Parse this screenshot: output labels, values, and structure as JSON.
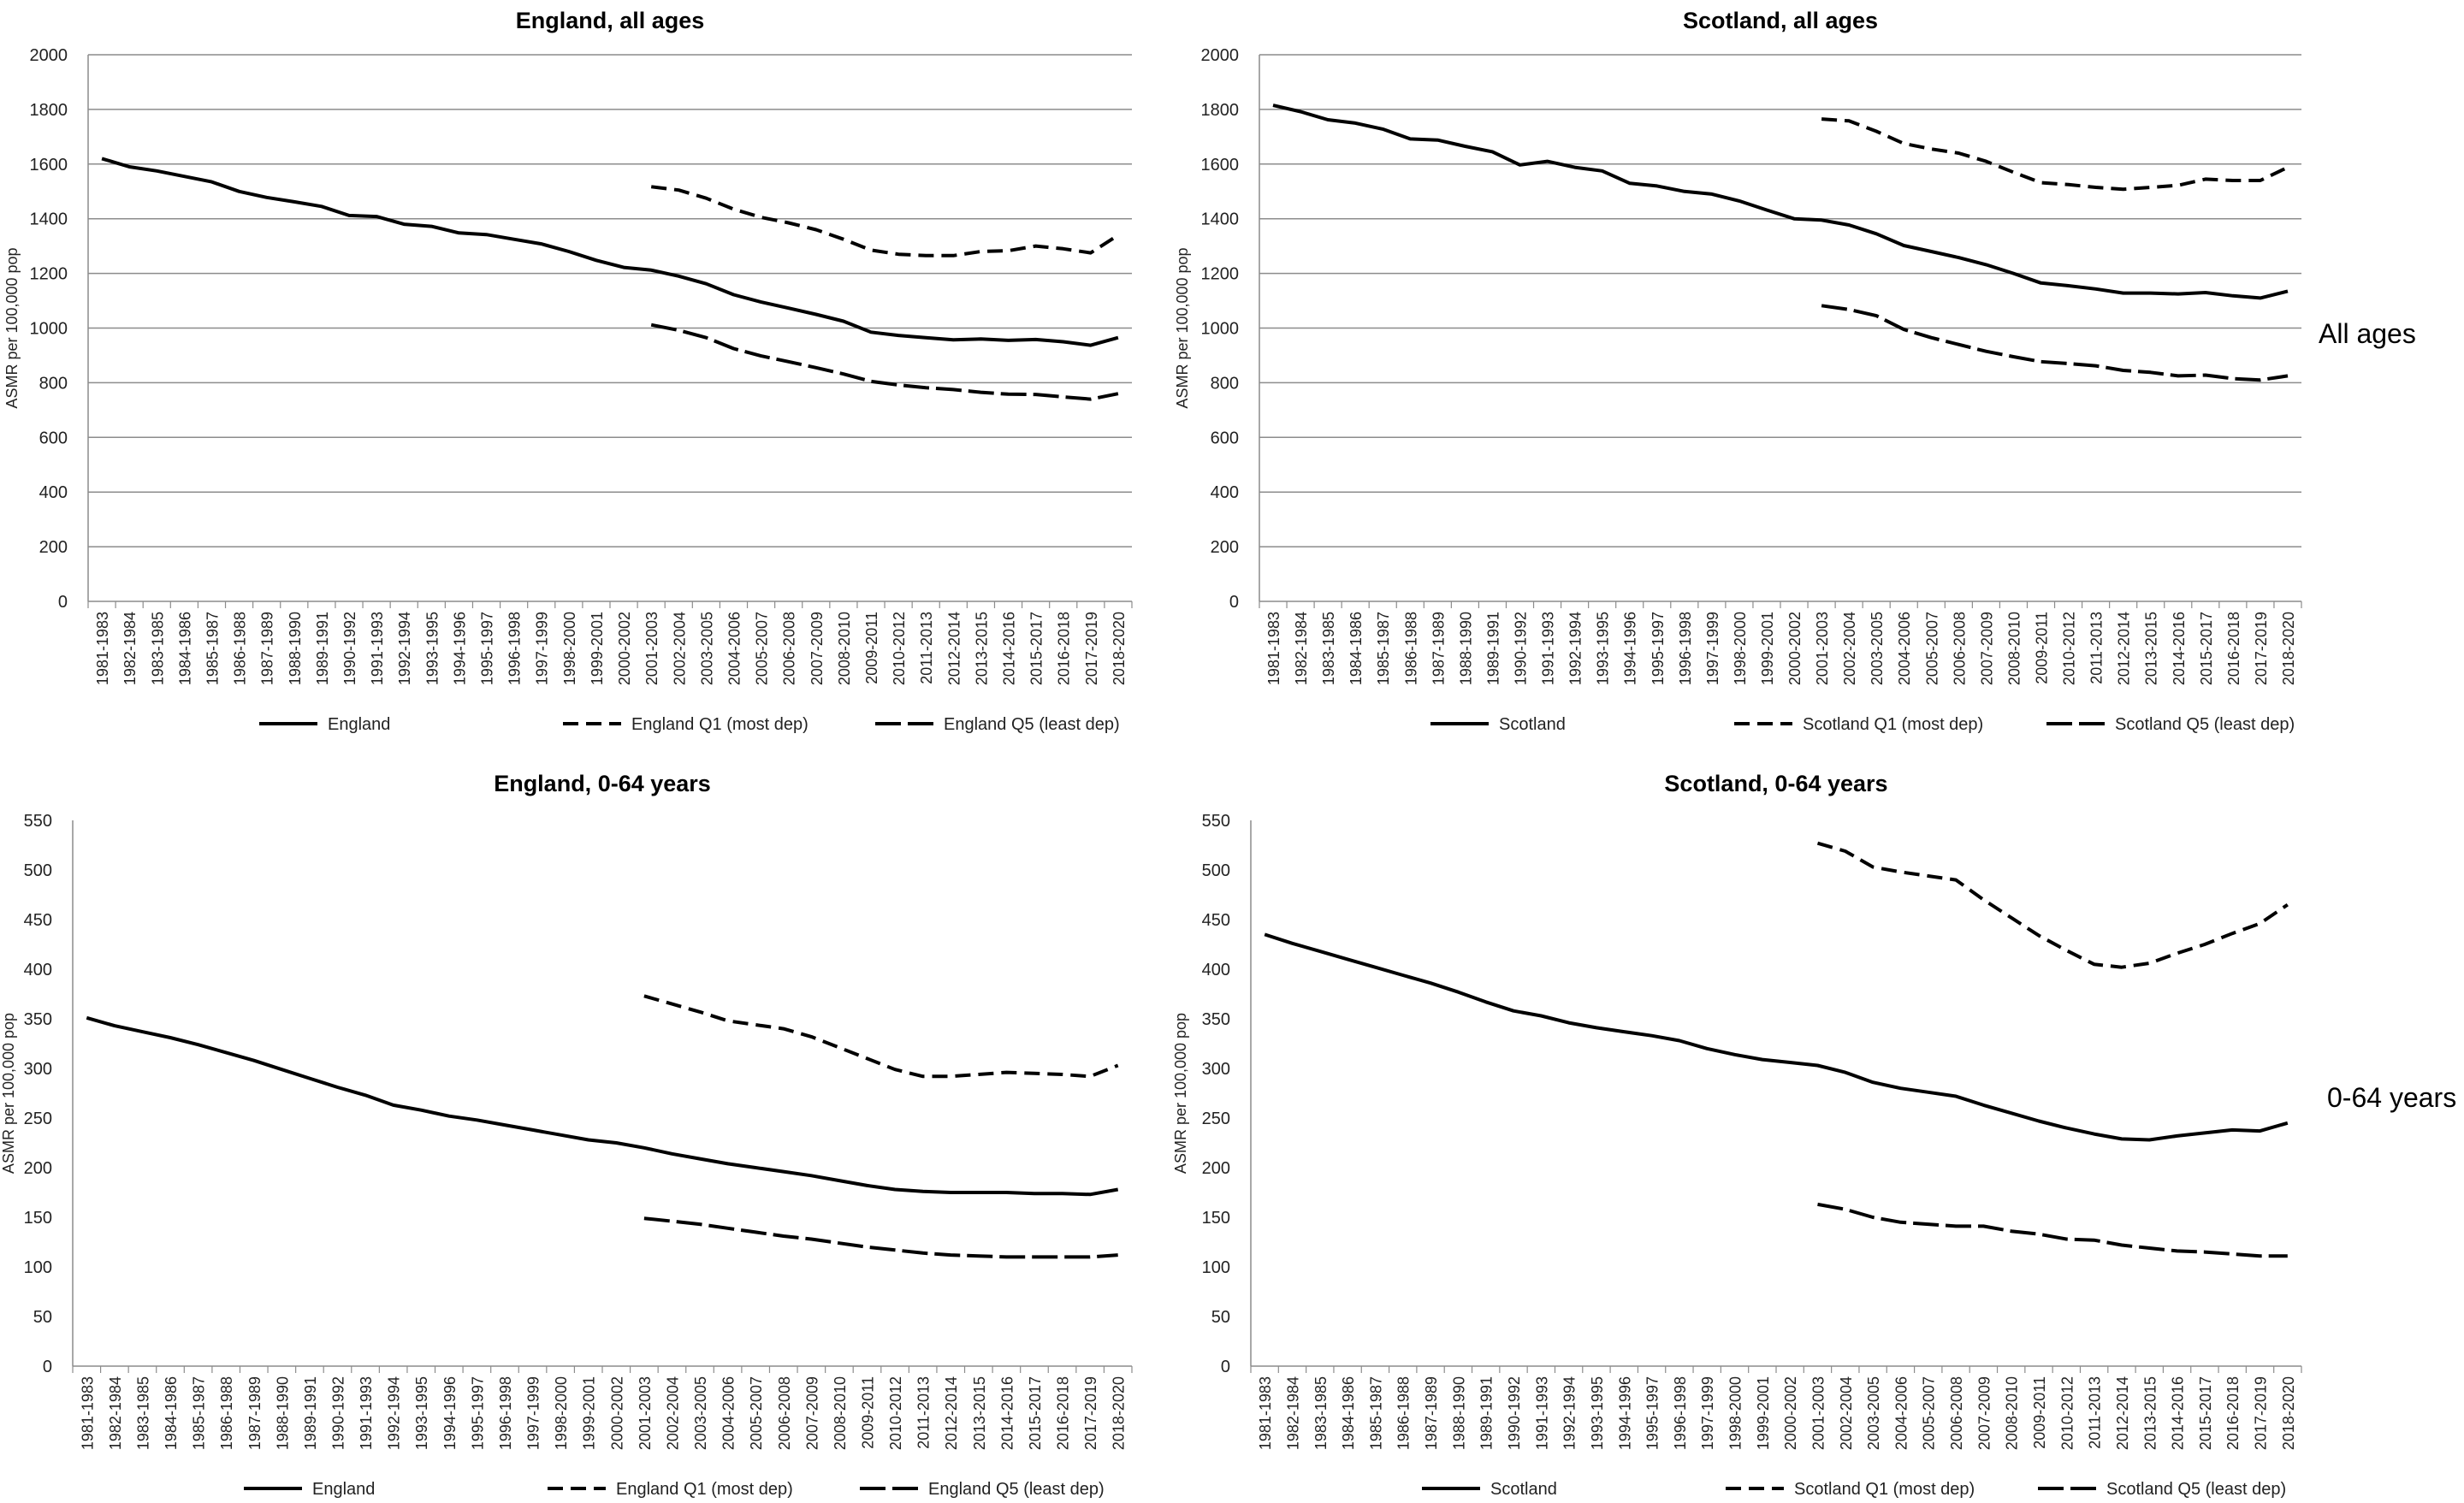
{
  "row_labels": [
    "All ages",
    "0-64 years"
  ],
  "chart_data": [
    {
      "type": "line",
      "title": "England, all ages",
      "xlabel": "",
      "ylabel": "ASMR per 100,000 pop",
      "ylim": [
        0,
        2000
      ],
      "yticks": [
        0,
        200,
        400,
        600,
        800,
        1000,
        1200,
        1400,
        1600,
        1800,
        2000
      ],
      "grid": true,
      "legend_position": "bottom",
      "categories": [
        "1981-1983",
        "1982-1984",
        "1983-1985",
        "1984-1986",
        "1985-1987",
        "1986-1988",
        "1987-1989",
        "1988-1990",
        "1989-1991",
        "1990-1992",
        "1991-1993",
        "1992-1994",
        "1993-1995",
        "1994-1996",
        "1995-1997",
        "1996-1998",
        "1997-1999",
        "1998-2000",
        "1999-2001",
        "2000-2002",
        "2001-2003",
        "2002-2004",
        "2003-2005",
        "2004-2006",
        "2005-2007",
        "2006-2008",
        "2007-2009",
        "2008-2010",
        "2009-2011",
        "2010-2012",
        "2011-2013",
        "2012-2014",
        "2013-2015",
        "2014-2016",
        "2015-2017",
        "2016-2018",
        "2017-2019",
        "2018-2020"
      ],
      "series": [
        {
          "name": "England",
          "style": "solid",
          "values": [
            1620,
            1590,
            1575,
            1555,
            1535,
            1500,
            1478,
            1462,
            1445,
            1412,
            1408,
            1380,
            1372,
            1348,
            1342,
            1325,
            1308,
            1280,
            1248,
            1222,
            1212,
            1190,
            1162,
            1122,
            1095,
            1073,
            1050,
            1025,
            985,
            973,
            965,
            957,
            960,
            955,
            958,
            950,
            937,
            965
          ]
        },
        {
          "name": "England Q1 (most dep)",
          "style": "dashed",
          "values": [
            null,
            null,
            null,
            null,
            null,
            null,
            null,
            null,
            null,
            null,
            null,
            null,
            null,
            null,
            null,
            null,
            null,
            null,
            null,
            null,
            1517,
            1505,
            1475,
            1435,
            1405,
            1385,
            1360,
            1325,
            1285,
            1270,
            1265,
            1265,
            1280,
            1283,
            1300,
            1290,
            1275,
            1340
          ]
        },
        {
          "name": "England Q5 (least dep)",
          "style": "longdash",
          "values": [
            null,
            null,
            null,
            null,
            null,
            null,
            null,
            null,
            null,
            null,
            null,
            null,
            null,
            null,
            null,
            null,
            null,
            null,
            null,
            null,
            1012,
            992,
            965,
            925,
            898,
            877,
            855,
            832,
            805,
            792,
            782,
            775,
            765,
            758,
            757,
            748,
            740,
            760
          ]
        }
      ]
    },
    {
      "type": "line",
      "title": "Scotland, all ages",
      "xlabel": "",
      "ylabel": "ASMR per 100,000 pop",
      "ylim": [
        0,
        2000
      ],
      "yticks": [
        0,
        200,
        400,
        600,
        800,
        1000,
        1200,
        1400,
        1600,
        1800,
        2000
      ],
      "grid": true,
      "legend_position": "bottom",
      "categories": [
        "1981-1983",
        "1982-1984",
        "1983-1985",
        "1984-1986",
        "1985-1987",
        "1986-1988",
        "1987-1989",
        "1988-1990",
        "1989-1991",
        "1990-1992",
        "1991-1993",
        "1992-1994",
        "1993-1995",
        "1994-1996",
        "1995-1997",
        "1996-1998",
        "1997-1999",
        "1998-2000",
        "1999-2001",
        "2000-2002",
        "2001-2003",
        "2002-2004",
        "2003-2005",
        "2004-2006",
        "2005-2007",
        "2006-2008",
        "2007-2009",
        "2008-2010",
        "2009-2011",
        "2010-2012",
        "2011-2013",
        "2012-2014",
        "2013-2015",
        "2014-2016",
        "2015-2017",
        "2016-2018",
        "2017-2019",
        "2018-2020"
      ],
      "series": [
        {
          "name": "Scotland",
          "style": "solid",
          "values": [
            1815,
            1792,
            1762,
            1750,
            1728,
            1692,
            1688,
            1665,
            1645,
            1597,
            1610,
            1588,
            1575,
            1530,
            1520,
            1500,
            1490,
            1465,
            1432,
            1400,
            1395,
            1377,
            1345,
            1302,
            1280,
            1258,
            1232,
            1200,
            1165,
            1155,
            1143,
            1128,
            1128,
            1125,
            1130,
            1118,
            1110,
            1135
          ]
        },
        {
          "name": "Scotland Q1 (most dep)",
          "style": "dashed",
          "values": [
            null,
            null,
            null,
            null,
            null,
            null,
            null,
            null,
            null,
            null,
            null,
            null,
            null,
            null,
            null,
            null,
            null,
            null,
            null,
            null,
            1765,
            1758,
            1720,
            1675,
            1655,
            1640,
            1610,
            1570,
            1532,
            1525,
            1515,
            1508,
            1515,
            1522,
            1545,
            1540,
            1540,
            1588
          ]
        },
        {
          "name": "Scotland Q5 (least dep)",
          "style": "longdash",
          "values": [
            null,
            null,
            null,
            null,
            null,
            null,
            null,
            null,
            null,
            null,
            null,
            null,
            null,
            null,
            null,
            null,
            null,
            null,
            null,
            null,
            1082,
            1068,
            1045,
            995,
            965,
            940,
            915,
            895,
            877,
            870,
            862,
            845,
            838,
            825,
            828,
            815,
            810,
            825
          ]
        }
      ]
    },
    {
      "type": "line",
      "title": "England, 0-64 years",
      "xlabel": "",
      "ylabel": "ASMR per 100,000 pop",
      "ylim": [
        0,
        550
      ],
      "yticks": [
        0,
        50,
        100,
        150,
        200,
        250,
        300,
        350,
        400,
        450,
        500,
        550
      ],
      "grid": false,
      "legend_position": "bottom",
      "categories": [
        "1981-1983",
        "1982-1984",
        "1983-1985",
        "1984-1986",
        "1985-1987",
        "1986-1988",
        "1987-1989",
        "1988-1990",
        "1989-1991",
        "1990-1992",
        "1991-1993",
        "1992-1994",
        "1993-1995",
        "1994-1996",
        "1995-1997",
        "1996-1998",
        "1997-1999",
        "1998-2000",
        "1999-2001",
        "2000-2002",
        "2001-2003",
        "2002-2004",
        "2003-2005",
        "2004-2006",
        "2005-2007",
        "2006-2008",
        "2007-2009",
        "2008-2010",
        "2009-2011",
        "2010-2012",
        "2011-2013",
        "2012-2014",
        "2013-2015",
        "2014-2016",
        "2015-2017",
        "2016-2018",
        "2017-2019",
        "2018-2020"
      ],
      "series": [
        {
          "name": "England",
          "style": "solid",
          "values": [
            351,
            343,
            337,
            331,
            324,
            316,
            308,
            299,
            290,
            281,
            273,
            263,
            258,
            252,
            248,
            243,
            238,
            233,
            228,
            225,
            220,
            214,
            209,
            204,
            200,
            196,
            192,
            187,
            182,
            178,
            176,
            175,
            175,
            175,
            174,
            174,
            173,
            178
          ]
        },
        {
          "name": "England Q1 (most dep)",
          "style": "dashed",
          "values": [
            null,
            null,
            null,
            null,
            null,
            null,
            null,
            null,
            null,
            null,
            null,
            null,
            null,
            null,
            null,
            null,
            null,
            null,
            null,
            null,
            373,
            365,
            357,
            348,
            344,
            340,
            332,
            321,
            310,
            299,
            292,
            292,
            294,
            296,
            295,
            294,
            292,
            303
          ]
        },
        {
          "name": "England Q5 (least dep)",
          "style": "longdash",
          "values": [
            null,
            null,
            null,
            null,
            null,
            null,
            null,
            null,
            null,
            null,
            null,
            null,
            null,
            null,
            null,
            null,
            null,
            null,
            null,
            null,
            149,
            146,
            143,
            139,
            135,
            131,
            128,
            124,
            120,
            117,
            114,
            112,
            111,
            110,
            110,
            110,
            110,
            112
          ]
        }
      ]
    },
    {
      "type": "line",
      "title": "Scotland, 0-64 years",
      "xlabel": "",
      "ylabel": "ASMR per 100,000 pop",
      "ylim": [
        0,
        550
      ],
      "yticks": [
        0,
        50,
        100,
        150,
        200,
        250,
        300,
        350,
        400,
        450,
        500,
        550
      ],
      "grid": false,
      "legend_position": "bottom",
      "categories": [
        "1981-1983",
        "1982-1984",
        "1983-1985",
        "1984-1986",
        "1985-1987",
        "1986-1988",
        "1987-1989",
        "1988-1990",
        "1989-1991",
        "1990-1992",
        "1991-1993",
        "1992-1994",
        "1993-1995",
        "1994-1996",
        "1995-1997",
        "1996-1998",
        "1997-1999",
        "1998-2000",
        "1999-2001",
        "2000-2002",
        "2001-2003",
        "2002-2004",
        "2003-2005",
        "2004-2006",
        "2005-2007",
        "2006-2008",
        "2007-2009",
        "2008-2010",
        "2009-2011",
        "2010-2012",
        "2011-2013",
        "2012-2014",
        "2013-2015",
        "2014-2016",
        "2015-2017",
        "2016-2018",
        "2017-2019",
        "2018-2020"
      ],
      "series": [
        {
          "name": "Scotland",
          "style": "solid",
          "values": [
            435,
            426,
            418,
            410,
            402,
            394,
            386,
            377,
            367,
            358,
            353,
            346,
            341,
            337,
            333,
            328,
            320,
            314,
            309,
            306,
            303,
            296,
            286,
            280,
            276,
            272,
            263,
            255,
            247,
            240,
            234,
            229,
            228,
            232,
            235,
            238,
            237,
            245
          ]
        },
        {
          "name": "Scotland Q1 (most dep)",
          "style": "dashed",
          "values": [
            null,
            null,
            null,
            null,
            null,
            null,
            null,
            null,
            null,
            null,
            null,
            null,
            null,
            null,
            null,
            null,
            null,
            null,
            null,
            null,
            527,
            519,
            503,
            498,
            494,
            490,
            470,
            452,
            434,
            419,
            405,
            402,
            406,
            416,
            425,
            436,
            446,
            465
          ]
        },
        {
          "name": "Scotland Q5 (least dep)",
          "style": "longdash",
          "values": [
            null,
            null,
            null,
            null,
            null,
            null,
            null,
            null,
            null,
            null,
            null,
            null,
            null,
            null,
            null,
            null,
            null,
            null,
            null,
            null,
            163,
            158,
            150,
            145,
            143,
            141,
            141,
            136,
            133,
            128,
            127,
            122,
            119,
            116,
            115,
            113,
            111,
            111
          ]
        }
      ]
    }
  ]
}
